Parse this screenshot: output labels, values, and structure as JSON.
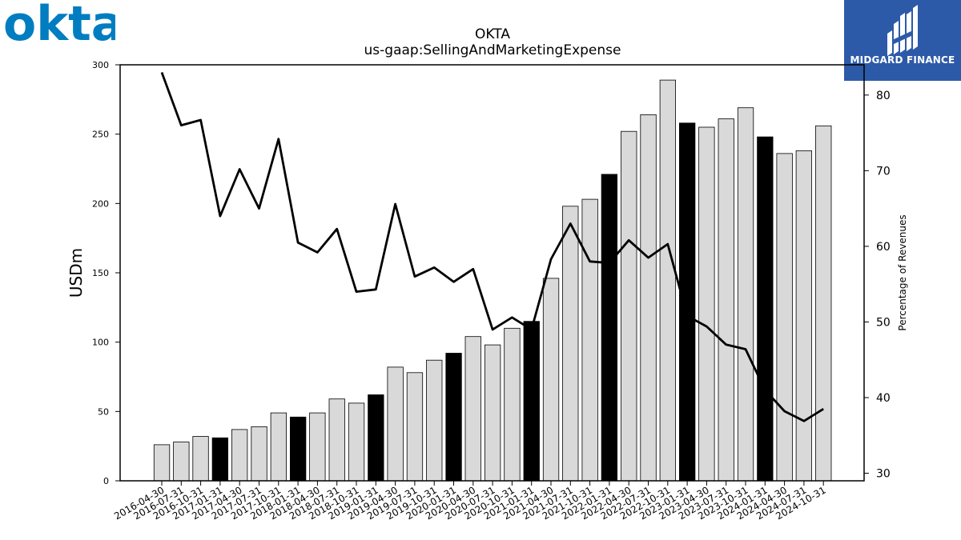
{
  "brand": {
    "logo_text": "okta",
    "publisher": "MIDGARD FINANCE",
    "okta_color": "#007dc1",
    "publisher_bg": "#2d5aa8"
  },
  "chart_data": {
    "type": "bar",
    "title": "OKTA",
    "subtitle": "us-gaap:SellingAndMarketingExpense",
    "ylabel": "USDm",
    "y2label": "Percentage of Revenues",
    "ylim": [
      0,
      300
    ],
    "y2lim": [
      29,
      84
    ],
    "yticks": [
      0,
      50,
      100,
      150,
      200,
      250,
      300
    ],
    "y2ticks": [
      30,
      40,
      50,
      60,
      70,
      80
    ],
    "categories": [
      "2016-04-30",
      "2016-07-31",
      "2016-10-31",
      "2017-01-31",
      "2017-04-30",
      "2017-07-31",
      "2017-10-31",
      "2018-01-31",
      "2018-04-30",
      "2018-07-31",
      "2018-10-31",
      "2019-01-31",
      "2019-04-30",
      "2019-07-31",
      "2019-10-31",
      "2020-01-31",
      "2020-04-30",
      "2020-07-31",
      "2020-10-31",
      "2021-01-31",
      "2021-04-30",
      "2021-07-31",
      "2021-10-31",
      "2022-01-31",
      "2022-04-30",
      "2022-07-31",
      "2022-10-31",
      "2023-01-31",
      "2023-04-30",
      "2023-07-31",
      "2023-10-31",
      "2024-01-31",
      "2024-04-30",
      "2024-07-31",
      "2024-10-31"
    ],
    "series": [
      {
        "type": "bar",
        "values": [
          26,
          28,
          32,
          31,
          37,
          39,
          49,
          46,
          49,
          59,
          56,
          62,
          82,
          78,
          87,
          92,
          104,
          98,
          110,
          115,
          146,
          198,
          203,
          221,
          252,
          264,
          289,
          258,
          255,
          261,
          269,
          248,
          236,
          238,
          256
        ],
        "highlight": [
          false,
          false,
          false,
          true,
          false,
          false,
          false,
          true,
          false,
          false,
          false,
          true,
          false,
          false,
          false,
          true,
          false,
          false,
          false,
          true,
          false,
          false,
          false,
          true,
          false,
          false,
          false,
          true,
          false,
          false,
          false,
          true,
          false,
          false,
          false
        ],
        "color": "#d9d9d9",
        "highlight_color": "#000000"
      },
      {
        "type": "line",
        "axis": "right",
        "values": [
          83,
          76,
          76.7,
          64,
          70.2,
          65,
          74.2,
          60.5,
          59.2,
          62.3,
          54,
          54.3,
          65.6,
          56,
          57.2,
          55.3,
          57,
          49,
          50.6,
          49,
          58.3,
          63,
          58,
          57.8,
          60.8,
          58.5,
          60.3,
          50.8,
          49.4,
          47,
          46.4,
          41,
          38.2,
          36.9,
          38.5
        ],
        "color": "#000000"
      }
    ],
    "grid": false
  }
}
